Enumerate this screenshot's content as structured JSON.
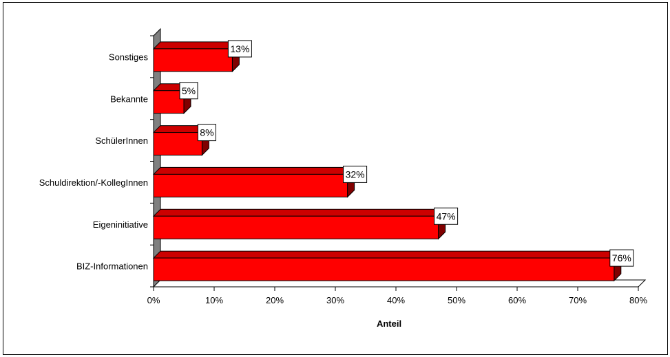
{
  "chart_data": {
    "type": "bar",
    "orientation": "horizontal",
    "style": "3d",
    "categories": [
      "BIZ-Informationen",
      "Eigeninitiative",
      "Schuldirektion/-KollegInnen",
      "SchülerInnen",
      "Bekannte",
      "Sonstiges"
    ],
    "values": [
      76,
      47,
      32,
      8,
      5,
      13
    ],
    "data_labels": [
      "76%",
      "47%",
      "32%",
      "8%",
      "5%",
      "13%"
    ],
    "xlabel": "Anteil",
    "xlim": [
      0,
      80
    ],
    "x_ticks": [
      "0%",
      "10%",
      "20%",
      "30%",
      "40%",
      "50%",
      "60%",
      "70%",
      "80%"
    ],
    "grid": false,
    "legend": "none",
    "colors": {
      "bar_front": "#ff0000",
      "bar_top": "#cc0000",
      "bar_side": "#800000",
      "wall": "#808080",
      "floor": "#ffffff"
    }
  }
}
